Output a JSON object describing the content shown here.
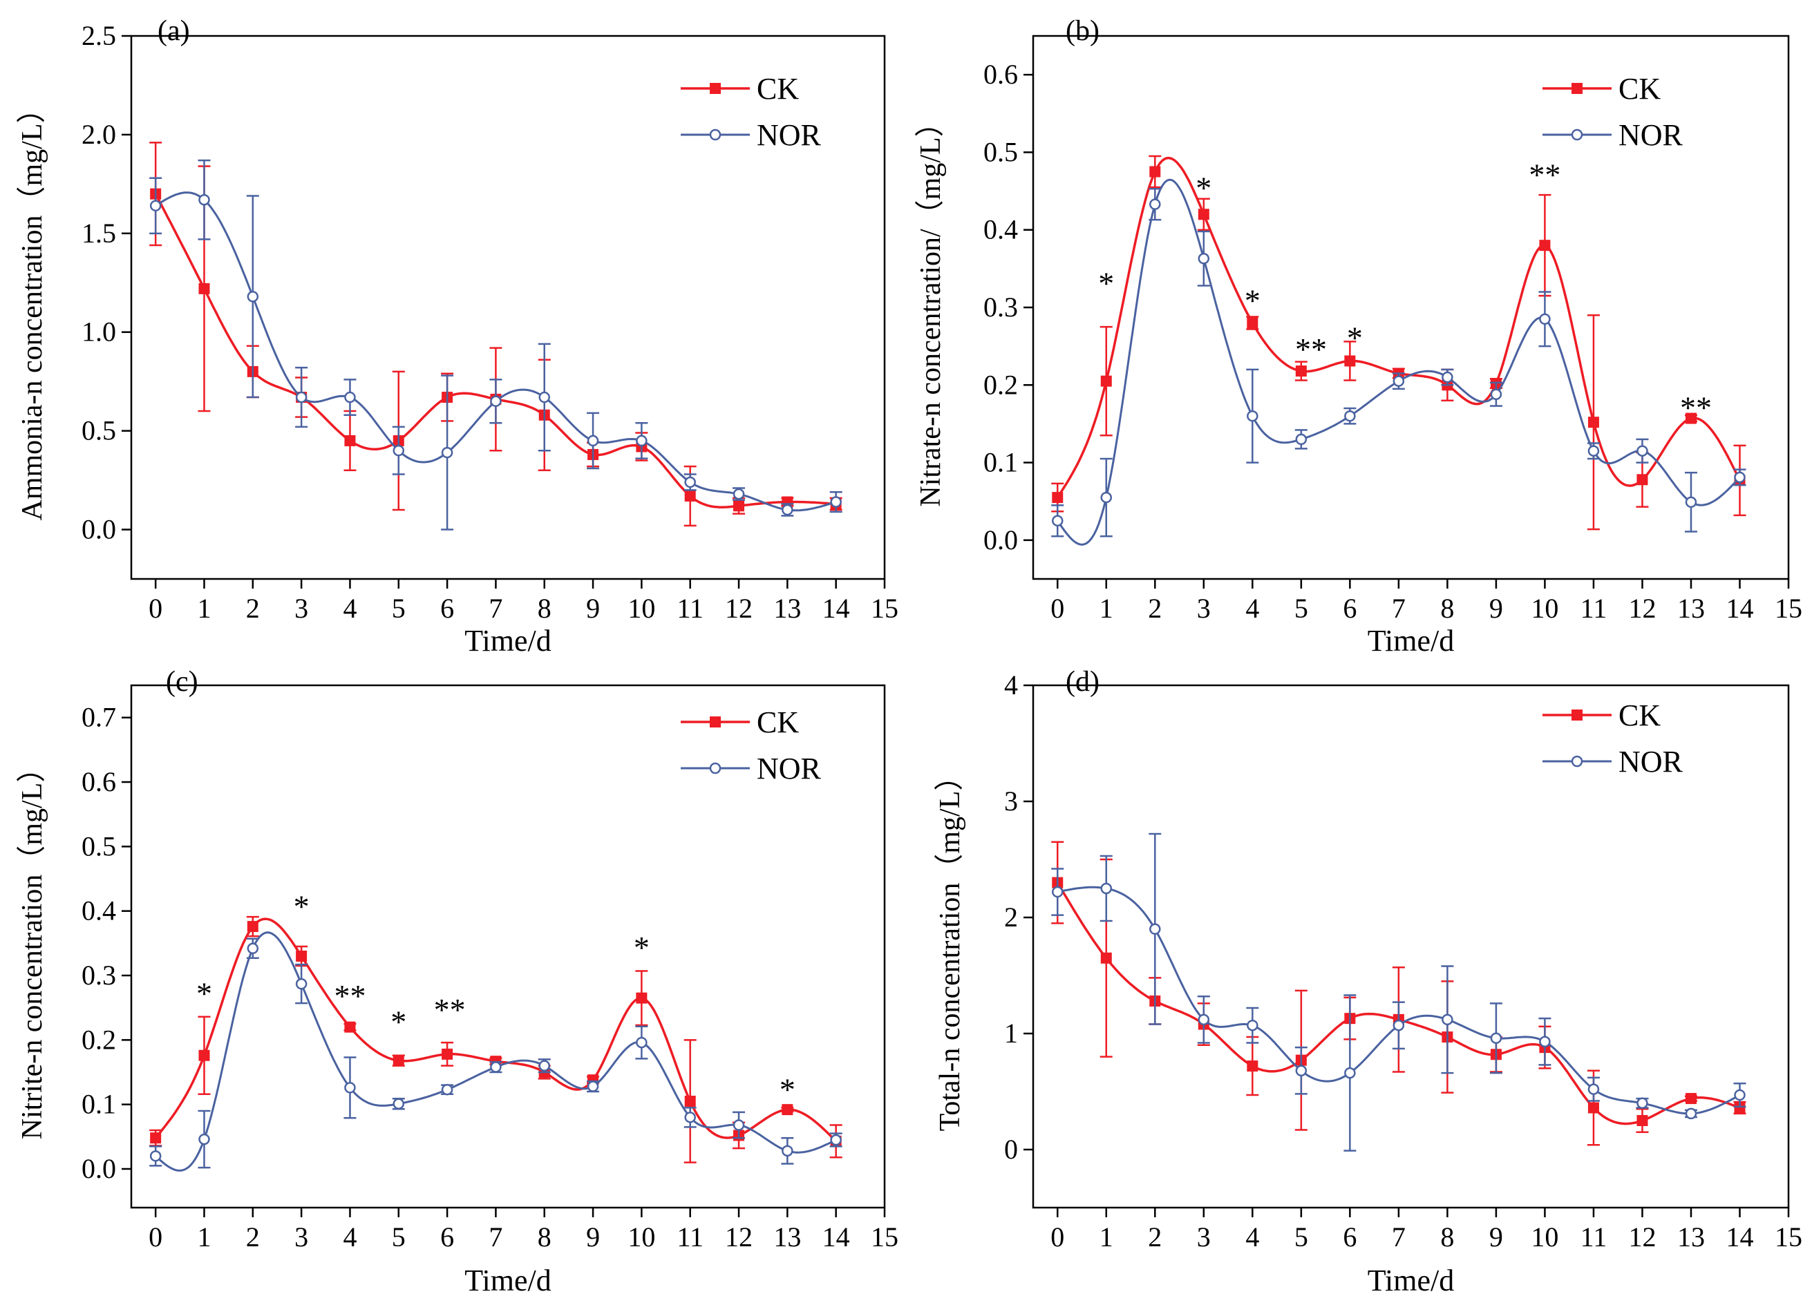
{
  "colors": {
    "ck": "#ee1c24",
    "nor": "#4a62a0",
    "axis": "#000000"
  },
  "chart_data": [
    {
      "panel": "(a)",
      "type": "line",
      "xlabel": "Time/d",
      "ylabel": "Ammonia-n concentration（mg/L）",
      "xlim": [
        -0.5,
        15
      ],
      "ylim": [
        -0.25,
        2.5
      ],
      "xticks": [
        0,
        1,
        2,
        3,
        4,
        5,
        6,
        7,
        8,
        9,
        10,
        11,
        12,
        13,
        14,
        15
      ],
      "yticks": [
        0.0,
        0.5,
        1.0,
        1.5,
        2.0,
        2.5
      ],
      "ytick_labels": [
        "0.0",
        "0.5",
        "1.0",
        "1.5",
        "2.0",
        "2.5"
      ],
      "legend": "top-right",
      "x": [
        0,
        1,
        2,
        3,
        4,
        5,
        6,
        7,
        8,
        9,
        10,
        11,
        12,
        13,
        14
      ],
      "series": [
        {
          "name": "CK",
          "values": [
            1.7,
            1.22,
            0.8,
            0.67,
            0.45,
            0.45,
            0.67,
            0.66,
            0.58,
            0.38,
            0.42,
            0.17,
            0.12,
            0.14,
            0.13
          ],
          "errors": [
            0.26,
            0.62,
            0.13,
            0.1,
            0.15,
            0.35,
            0.12,
            0.26,
            0.28,
            0.06,
            0.07,
            0.15,
            0.04,
            0.02,
            0.03
          ]
        },
        {
          "name": "NOR",
          "values": [
            1.64,
            1.67,
            1.18,
            0.67,
            0.67,
            0.4,
            0.39,
            0.65,
            0.67,
            0.45,
            0.45,
            0.24,
            0.18,
            0.1,
            0.14
          ],
          "errors": [
            0.14,
            0.2,
            0.51,
            0.15,
            0.09,
            0.12,
            0.39,
            0.11,
            0.27,
            0.14,
            0.09,
            0.04,
            0.03,
            0.03,
            0.05
          ]
        }
      ],
      "annotations": []
    },
    {
      "panel": "(b)",
      "type": "line",
      "xlabel": "Time/d",
      "ylabel": "Nitrate-n concentration/（mg/L）",
      "xlim": [
        -0.5,
        15
      ],
      "ylim": [
        -0.05,
        0.65
      ],
      "xticks": [
        0,
        1,
        2,
        3,
        4,
        5,
        6,
        7,
        8,
        9,
        10,
        11,
        12,
        13,
        14,
        15
      ],
      "yticks": [
        0.0,
        0.1,
        0.2,
        0.3,
        0.4,
        0.5,
        0.6
      ],
      "ytick_labels": [
        "0.0",
        "0.1",
        "0.2",
        "0.3",
        "0.4",
        "0.5",
        "0.6"
      ],
      "legend": "top-right",
      "x": [
        0,
        1,
        2,
        3,
        4,
        5,
        6,
        7,
        8,
        9,
        10,
        11,
        12,
        13,
        14
      ],
      "series": [
        {
          "name": "CK",
          "values": [
            0.055,
            0.205,
            0.475,
            0.42,
            0.28,
            0.218,
            0.231,
            0.215,
            0.2,
            0.202,
            0.38,
            0.152,
            0.078,
            0.157,
            0.077
          ],
          "errors": [
            0.018,
            0.07,
            0.02,
            0.02,
            0.008,
            0.012,
            0.025,
            0.006,
            0.02,
            0.006,
            0.065,
            0.138,
            0.035,
            0.004,
            0.045
          ]
        },
        {
          "name": "NOR",
          "values": [
            0.025,
            0.055,
            0.433,
            0.363,
            0.16,
            0.13,
            0.16,
            0.205,
            0.21,
            0.188,
            0.285,
            0.115,
            0.115,
            0.049,
            0.081
          ],
          "errors": [
            0.02,
            0.05,
            0.02,
            0.035,
            0.06,
            0.012,
            0.01,
            0.01,
            0.01,
            0.015,
            0.035,
            0.01,
            0.015,
            0.038,
            0.01
          ]
        }
      ],
      "annotations": [
        {
          "x": 1,
          "y": 0.335,
          "text": "*"
        },
        {
          "x": 3,
          "y": 0.458,
          "text": "*"
        },
        {
          "x": 4,
          "y": 0.313,
          "text": "*"
        },
        {
          "x": 5.2,
          "y": 0.25,
          "text": "**"
        },
        {
          "x": 6.1,
          "y": 0.265,
          "text": "*"
        },
        {
          "x": 10,
          "y": 0.475,
          "text": "**"
        },
        {
          "x": 13.1,
          "y": 0.175,
          "text": "**"
        }
      ]
    },
    {
      "panel": "(c)",
      "type": "line",
      "xlabel": "Time/d",
      "ylabel": "Nitrite-n concentration（mg/L）",
      "xlim": [
        -0.5,
        15
      ],
      "ylim": [
        -0.06,
        0.75
      ],
      "xticks": [
        0,
        1,
        2,
        3,
        4,
        5,
        6,
        7,
        8,
        9,
        10,
        11,
        12,
        13,
        14,
        15
      ],
      "yticks": [
        0.0,
        0.1,
        0.2,
        0.3,
        0.4,
        0.5,
        0.6,
        0.7
      ],
      "ytick_labels": [
        "0.0",
        "0.1",
        "0.2",
        "0.3",
        "0.4",
        "0.5",
        "0.6",
        "0.7"
      ],
      "legend": "top-right",
      "x": [
        0,
        1,
        2,
        3,
        4,
        5,
        6,
        7,
        8,
        9,
        10,
        11,
        12,
        13,
        14
      ],
      "series": [
        {
          "name": "CK",
          "values": [
            0.048,
            0.176,
            0.376,
            0.33,
            0.22,
            0.168,
            0.178,
            0.167,
            0.15,
            0.138,
            0.265,
            0.105,
            0.052,
            0.092,
            0.043
          ],
          "errors": [
            0.012,
            0.06,
            0.015,
            0.015,
            0.005,
            0.008,
            0.018,
            0.005,
            0.01,
            0.005,
            0.042,
            0.095,
            0.02,
            0.003,
            0.025
          ]
        },
        {
          "name": "NOR",
          "values": [
            0.02,
            0.046,
            0.342,
            0.287,
            0.126,
            0.101,
            0.123,
            0.158,
            0.16,
            0.128,
            0.196,
            0.08,
            0.068,
            0.028,
            0.045
          ],
          "errors": [
            0.015,
            0.044,
            0.015,
            0.03,
            0.047,
            0.008,
            0.007,
            0.008,
            0.01,
            0.008,
            0.025,
            0.015,
            0.02,
            0.02,
            0.01
          ]
        }
      ],
      "annotations": [
        {
          "x": 1,
          "y": 0.277,
          "text": "*"
        },
        {
          "x": 3,
          "y": 0.412,
          "text": "*"
        },
        {
          "x": 4,
          "y": 0.273,
          "text": "**"
        },
        {
          "x": 5,
          "y": 0.233,
          "text": "*"
        },
        {
          "x": 6.05,
          "y": 0.252,
          "text": "**"
        },
        {
          "x": 10,
          "y": 0.348,
          "text": "*"
        },
        {
          "x": 13,
          "y": 0.128,
          "text": "*"
        }
      ]
    },
    {
      "panel": "(d)",
      "type": "line",
      "xlabel": "Time/d",
      "ylabel": "Total-n concentration（mg/L）",
      "xlim": [
        -0.5,
        15
      ],
      "ylim": [
        -0.5,
        4
      ],
      "xticks": [
        0,
        1,
        2,
        3,
        4,
        5,
        6,
        7,
        8,
        9,
        10,
        11,
        12,
        13,
        14,
        15
      ],
      "yticks": [
        0,
        1,
        2,
        3,
        4
      ],
      "ytick_labels": [
        "0",
        "1",
        "2",
        "3",
        "4"
      ],
      "legend": "top-right",
      "x": [
        0,
        1,
        2,
        3,
        4,
        5,
        6,
        7,
        8,
        9,
        10,
        11,
        12,
        13,
        14
      ],
      "series": [
        {
          "name": "CK",
          "values": [
            2.3,
            1.65,
            1.28,
            1.08,
            0.72,
            0.77,
            1.13,
            1.12,
            0.97,
            0.82,
            0.88,
            0.36,
            0.25,
            0.44,
            0.36
          ],
          "errors": [
            0.35,
            0.85,
            0.2,
            0.18,
            0.25,
            0.6,
            0.18,
            0.45,
            0.48,
            0.15,
            0.18,
            0.32,
            0.1,
            0.02,
            0.05
          ]
        },
        {
          "name": "NOR",
          "values": [
            2.22,
            2.25,
            1.9,
            1.12,
            1.07,
            0.68,
            0.66,
            1.07,
            1.12,
            0.96,
            0.93,
            0.52,
            0.4,
            0.31,
            0.47
          ],
          "errors": [
            0.2,
            0.28,
            0.82,
            0.2,
            0.15,
            0.2,
            0.67,
            0.2,
            0.46,
            0.3,
            0.2,
            0.1,
            0.04,
            0.03,
            0.1
          ]
        }
      ],
      "annotations": []
    }
  ]
}
